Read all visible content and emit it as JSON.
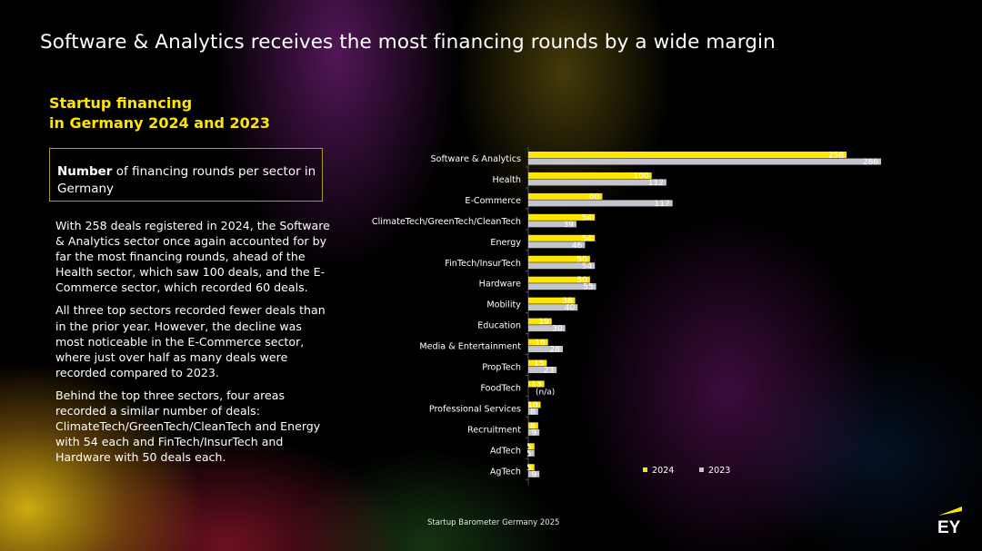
{
  "page": {
    "title": "Software & Analytics receives the most financing rounds by a wide margin",
    "subtitle_line1": "Startup financing",
    "subtitle_line2": "in Germany 2024 and 2023",
    "box_bold": "Number",
    "box_rest": " of financing rounds per sector in Germany",
    "paragraphs": [
      "With 258 deals registered in 2024, the Software & Analytics sector once again accounted for by far the most financing rounds, ahead of the Health sector, which saw 100 deals, and the E-Commerce sector, which recorded 60 deals.",
      "All three top sectors recorded fewer deals than in the prior year. However, the decline was most noticeable in the E-Commerce sector, where just over half as many deals were recorded compared to 2023.",
      "Behind the top three sectors, four areas recorded a similar number of deals: ClimateTech/GreenTech/CleanTech and Energy with 54 each and FinTech/InsurTech and Hardware with 50 deals each."
    ],
    "footer": "Startup Barometer Germany 2025",
    "logo_text": "EY"
  },
  "colors": {
    "series_2024": "#ffe600",
    "series_2023": "#c4c4cd",
    "accent": "#ffe600",
    "text": "#ffffff"
  },
  "chart_data": {
    "type": "bar",
    "orientation": "horizontal",
    "categories": [
      "Software & Analytics",
      "Health",
      "E-Commerce",
      "ClimateTech/GreenTech/CleanTech",
      "Energy",
      "FinTech/InsurTech",
      "Hardware",
      "Mobility",
      "Education",
      "Media & Entertainment",
      "PropTech",
      "FoodTech",
      "Professional Services",
      "Recruitment",
      "AdTech",
      "AgTech"
    ],
    "series": [
      {
        "name": "2024",
        "values": [
          258,
          100,
          60,
          54,
          54,
          50,
          50,
          38,
          19,
          16,
          15,
          13,
          10,
          8,
          5,
          5
        ]
      },
      {
        "name": "2023",
        "values": [
          286,
          112,
          117,
          39,
          46,
          54,
          55,
          40,
          30,
          28,
          23,
          null,
          8,
          9,
          5,
          9
        ]
      }
    ],
    "missing_label": "(n/a)",
    "xlim": [
      0,
      286
    ],
    "legend_position": "bottom-right",
    "grid": false
  }
}
